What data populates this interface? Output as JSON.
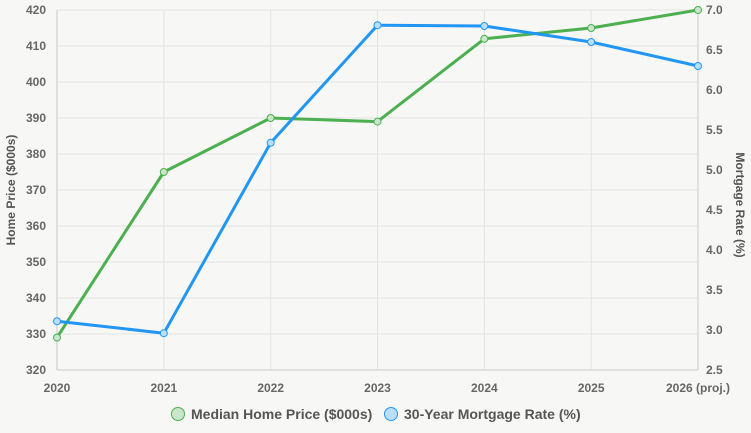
{
  "chart_data": {
    "type": "line",
    "categories": [
      "2020",
      "2021",
      "2022",
      "2023",
      "2024",
      "2025",
      "2026 (proj.)"
    ],
    "series": [
      {
        "name": "Median Home Price ($000s)",
        "axis": "left",
        "color": "#4caf50",
        "fill": "#c8e6c9",
        "values": [
          329,
          375,
          390,
          389,
          412,
          415,
          420
        ]
      },
      {
        "name": "30-Year Mortgage Rate (%)",
        "axis": "right",
        "color": "#2196f3",
        "fill": "#bbdefb",
        "values": [
          3.11,
          2.96,
          5.34,
          6.81,
          6.8,
          6.6,
          6.3
        ]
      }
    ],
    "y_left": {
      "label": "Home Price ($000s)",
      "ylim": [
        320,
        420
      ],
      "ticks": [
        "320",
        "330",
        "340",
        "350",
        "360",
        "370",
        "380",
        "390",
        "400",
        "410",
        "420"
      ]
    },
    "y_right": {
      "label": "Mortgage Rate (%)",
      "ylim": [
        2.5,
        7.0
      ],
      "ticks": [
        "2.5",
        "3.0",
        "3.5",
        "4.0",
        "4.5",
        "5.0",
        "5.5",
        "6.0",
        "6.5",
        "7.0"
      ]
    },
    "grid": true,
    "legend_position": "bottom"
  }
}
